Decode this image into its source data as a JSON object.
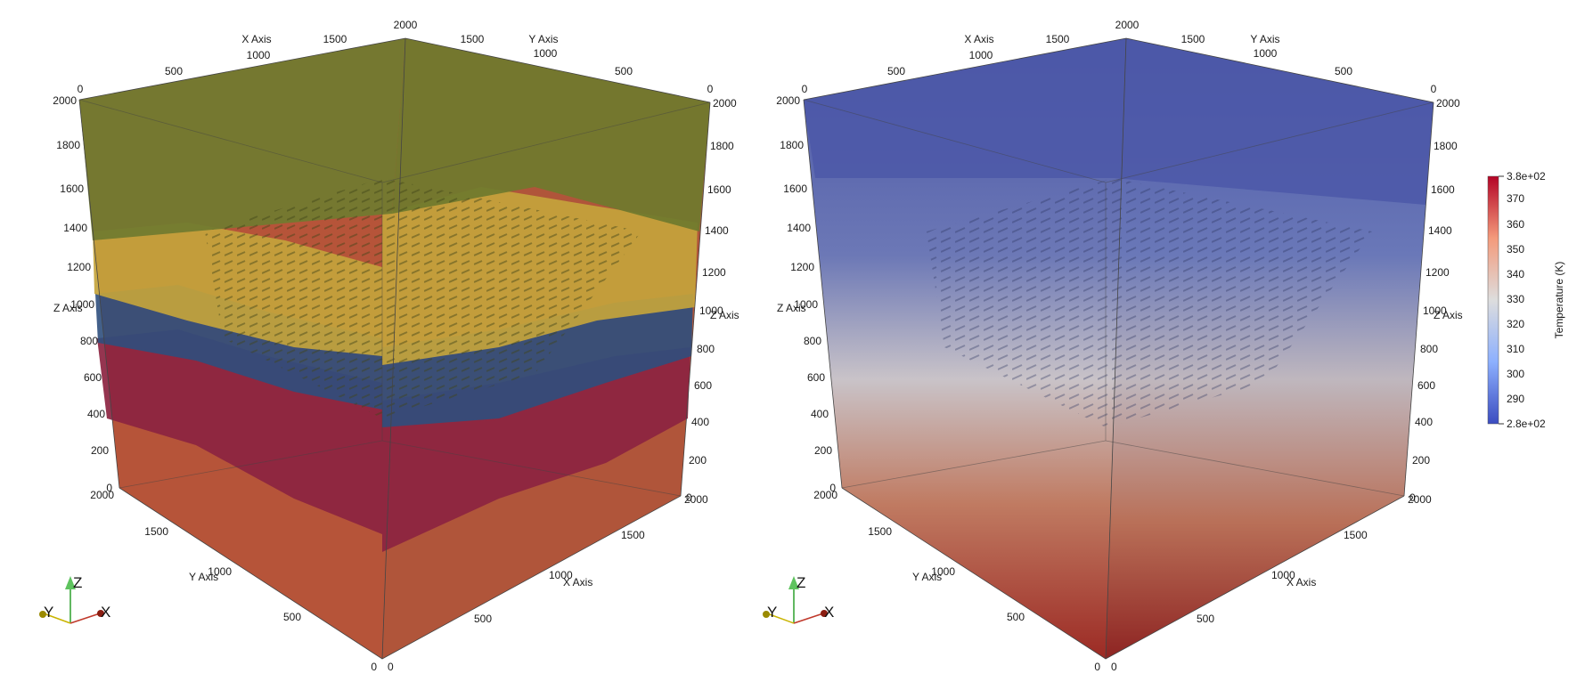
{
  "panels": [
    {
      "view": "geology-layers",
      "axes": {
        "x_title": "X Axis",
        "y_title": "Y Axis",
        "z_title": "Z Axis",
        "top_x_ticks": [
          "0",
          "500",
          "1000",
          "1500",
          "2000"
        ],
        "top_y_ticks": [
          "2000",
          "1500",
          "1000",
          "500",
          "0"
        ],
        "left_z_ticks": [
          "0",
          "200",
          "400",
          "600",
          "800",
          "1000",
          "1200",
          "1400",
          "1600",
          "1800",
          "2000"
        ],
        "right_z_ticks": [
          "0",
          "200",
          "400",
          "600",
          "800",
          "1000",
          "1200",
          "1400",
          "1600",
          "1800",
          "2000"
        ],
        "bottom_y_ticks": [
          "2000",
          "1500",
          "1000",
          "500",
          "0"
        ],
        "bottom_x_ticks": [
          "0",
          "500",
          "1000",
          "1500",
          "2000"
        ]
      },
      "layer_colors": {
        "top": "#7a8431",
        "upper": "#c4a43c",
        "middle": "#2f4f7d",
        "lower": "#8c2441",
        "base": "#b04d35"
      },
      "orientation_triad": {
        "z": "Z",
        "y": "Y",
        "x": "X"
      }
    },
    {
      "view": "temperature",
      "axes": {
        "x_title": "X Axis",
        "y_title": "Y Axis",
        "z_title": "Z Axis",
        "top_x_ticks": [
          "0",
          "500",
          "1000",
          "1500",
          "2000"
        ],
        "top_y_ticks": [
          "2000",
          "1500",
          "1000",
          "500",
          "0"
        ],
        "left_z_ticks": [
          "0",
          "200",
          "400",
          "600",
          "800",
          "1000",
          "1200",
          "1400",
          "1600",
          "1800",
          "2000"
        ],
        "right_z_ticks": [
          "0",
          "200",
          "400",
          "600",
          "800",
          "1000",
          "1200",
          "1400",
          "1600",
          "1800",
          "2000"
        ],
        "bottom_y_ticks": [
          "2000",
          "1500",
          "1000",
          "500",
          "0"
        ],
        "bottom_x_ticks": [
          "0",
          "500",
          "1000",
          "1500",
          "2000"
        ]
      },
      "gradient_colors": {
        "cold": "#4a56a6",
        "mid": "#c9c3c8",
        "hot": "#9c2a24"
      },
      "orientation_triad": {
        "z": "Z",
        "y": "Y",
        "x": "X"
      }
    }
  ],
  "colorbar": {
    "title": "Temperature (K)",
    "max_label": "3.8e+02",
    "min_label": "2.8e+02",
    "tick_labels": [
      "370",
      "360",
      "350",
      "340",
      "330",
      "320",
      "310",
      "300",
      "290"
    ],
    "colors": [
      "#3b4cc0",
      "#8db0fe",
      "#dddddd",
      "#f49a7b",
      "#b40426"
    ]
  }
}
